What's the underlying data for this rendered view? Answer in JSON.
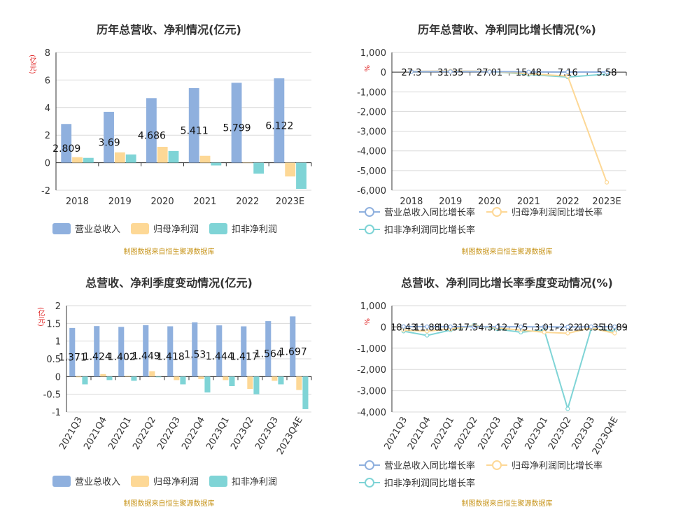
{
  "colors": {
    "revenue": "#8fb0de",
    "parent_np": "#fdd896",
    "deducted_np": "#7fd4d6",
    "line_rev": "#8fb0de",
    "line_np": "#fdd896",
    "line_ded": "#7fd4d6"
  },
  "source_text": "制图数据来自恒生聚源数据库",
  "legend_bar": [
    "营业总收入",
    "归母净利润",
    "扣非净利润"
  ],
  "legend_line": [
    "营业总收入同比增长率",
    "归母净利润同比增长率",
    "扣非净利润同比增长率"
  ],
  "chart_data": [
    {
      "type": "bar",
      "title": "历年总营收、净利情况(亿元)",
      "unit_label": "(亿元)",
      "categories": [
        "2018",
        "2019",
        "2020",
        "2021",
        "2022",
        "2023E"
      ],
      "ylim": [
        -2,
        8
      ],
      "yticks": [
        -2,
        0,
        2,
        4,
        6,
        8
      ],
      "series": [
        {
          "name": "营业总收入",
          "values": [
            2.809,
            3.69,
            4.686,
            5.411,
            5.799,
            6.122
          ]
        },
        {
          "name": "归母净利润",
          "values": [
            0.4,
            0.75,
            1.15,
            0.5,
            0.0,
            -1.0
          ]
        },
        {
          "name": "扣非净利润",
          "values": [
            0.35,
            0.6,
            0.85,
            -0.2,
            -0.8,
            -1.9
          ]
        }
      ],
      "data_labels": [
        "2.809",
        "3.69",
        "4.686",
        "5.411",
        "5.799",
        "6.122"
      ],
      "grid": true,
      "legend_position": "bottom"
    },
    {
      "type": "line",
      "title": "历年总营收、净利同比增长情况(%)",
      "unit_label": "%",
      "categories": [
        "2018",
        "2019",
        "2020",
        "2021",
        "2022",
        "2023E"
      ],
      "ylim": [
        -6000,
        1000
      ],
      "yticks": [
        -6000,
        -5000,
        -4000,
        -3000,
        -2000,
        -1000,
        0,
        1000
      ],
      "ytick_labels": [
        "-6,000",
        "-5,000",
        "-4,000",
        "-3,000",
        "-2,000",
        "-1,000",
        "0",
        "1,000"
      ],
      "series": [
        {
          "name": "营业总收入同比增长率",
          "values": [
            27.3,
            31.35,
            27.01,
            15.48,
            7.16,
            5.58
          ]
        },
        {
          "name": "归母净利润同比增长率",
          "values": [
            40,
            60,
            45,
            -80,
            -200,
            -5600
          ]
        },
        {
          "name": "扣非净利润同比增长率",
          "values": [
            30,
            50,
            40,
            -120,
            -250,
            -100
          ]
        }
      ],
      "data_labels": [
        "27.3",
        "31.35",
        "27.01",
        "15.48",
        "7.16",
        "5.58"
      ],
      "grid": true,
      "legend_position": "bottom"
    },
    {
      "type": "bar",
      "title": "总营收、净利季度变动情况(亿元)",
      "unit_label": "(亿元)",
      "categories": [
        "2021Q3",
        "2021Q4",
        "2022Q1",
        "2022Q2",
        "2022Q3",
        "2022Q4",
        "2023Q1",
        "2023Q2",
        "2023Q3",
        "2023Q4E"
      ],
      "ylim": [
        -1,
        2
      ],
      "yticks": [
        -1,
        -0.5,
        0,
        0.5,
        1,
        1.5,
        2
      ],
      "series": [
        {
          "name": "营业总收入",
          "values": [
            1.371,
            1.424,
            1.402,
            1.449,
            1.418,
            1.53,
            1.444,
            1.417,
            1.564,
            1.697
          ]
        },
        {
          "name": "归母净利润",
          "values": [
            -0.02,
            0.07,
            0.02,
            0.15,
            -0.1,
            -0.07,
            -0.1,
            -0.35,
            -0.12,
            -0.38
          ]
        },
        {
          "name": "扣非净利润",
          "values": [
            -0.22,
            -0.1,
            -0.12,
            -0.02,
            -0.22,
            -0.45,
            -0.27,
            -0.5,
            -0.22,
            -0.92
          ]
        }
      ],
      "data_labels": [
        "1.371",
        "1.424",
        "1.402",
        "1.449",
        "1.418",
        "1.53",
        "1.444",
        "1.417",
        "1.564",
        "1.697"
      ],
      "grid": true,
      "legend_position": "bottom"
    },
    {
      "type": "line",
      "title": "总营收、净利同比增长率季度变动情况(%)",
      "unit_label": "%",
      "categories": [
        "2021Q3",
        "2021Q4",
        "2022Q1",
        "2022Q2",
        "2022Q3",
        "2022Q4",
        "2023Q1",
        "2023Q2",
        "2023Q3",
        "2023Q4E"
      ],
      "ylim": [
        -4000,
        1000
      ],
      "yticks": [
        -4000,
        -3000,
        -2000,
        -1000,
        0,
        1000
      ],
      "ytick_labels": [
        "-4,000",
        "-3,000",
        "-2,000",
        "-1,000",
        "0",
        "1,000"
      ],
      "series": [
        {
          "name": "营业总收入同比增长率",
          "values": [
            18.43,
            11.88,
            10.31,
            7.54,
            3.12,
            7.5,
            3.01,
            -2.22,
            10.35,
            10.89
          ]
        },
        {
          "name": "归母净利润同比增长率",
          "values": [
            -150,
            -200,
            -100,
            50,
            -50,
            -150,
            -250,
            -300,
            -50,
            -300
          ]
        },
        {
          "name": "扣非净利润同比增长率",
          "values": [
            -200,
            -400,
            -150,
            80,
            -100,
            -250,
            -150,
            -3850,
            -80,
            -200
          ]
        }
      ],
      "data_labels": [
        "18.43",
        "11.88",
        "10.31",
        "7.54",
        "3.12",
        "7.5",
        "3.01",
        "-2.22",
        "10.35",
        "10.89"
      ],
      "grid": true,
      "legend_position": "bottom"
    }
  ]
}
